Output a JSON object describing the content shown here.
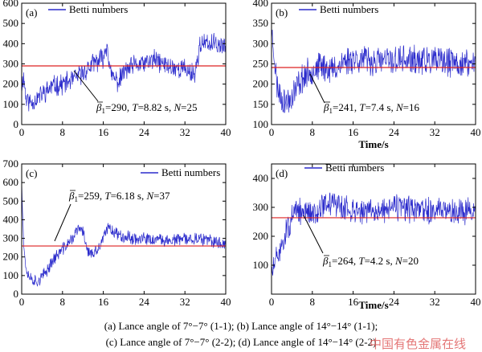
{
  "chart_data": [
    {
      "type": "line",
      "panel_label": "(a)",
      "legend": "Betti numbers",
      "legend_position": "top-left",
      "xlabel": "",
      "ylabel": "",
      "xlim": [
        0,
        40
      ],
      "ylim": [
        0,
        600
      ],
      "xticks": [
        0,
        8,
        16,
        24,
        32,
        40
      ],
      "yticks": [
        0,
        100,
        200,
        300,
        400,
        500,
        600
      ],
      "mean_line": 290,
      "annotation": {
        "beta": "290",
        "T": "8.82 s",
        "N": "25",
        "parts": [
          "1",
          "=290, ",
          "T",
          "=8.82 s, ",
          "N",
          "=25"
        ]
      },
      "profile": [
        [
          0,
          190
        ],
        [
          0.4,
          240
        ],
        [
          0.9,
          120
        ],
        [
          2,
          110
        ],
        [
          4,
          150
        ],
        [
          6,
          190
        ],
        [
          8,
          200
        ],
        [
          10,
          220
        ],
        [
          12,
          255
        ],
        [
          14,
          300
        ],
        [
          16,
          330
        ],
        [
          16.8,
          405
        ],
        [
          17.3,
          255
        ],
        [
          18,
          230
        ],
        [
          19,
          210
        ],
        [
          20,
          260
        ],
        [
          22,
          290
        ],
        [
          24,
          300
        ],
        [
          26,
          320
        ],
        [
          28,
          295
        ],
        [
          30,
          280
        ],
        [
          32,
          275
        ],
        [
          33,
          260
        ],
        [
          34,
          255
        ],
        [
          35,
          400
        ],
        [
          36,
          395
        ],
        [
          38,
          400
        ],
        [
          40,
          385
        ]
      ],
      "noise": 45,
      "seed": 11
    },
    {
      "type": "line",
      "panel_label": "(b)",
      "legend": "Betti numbers",
      "legend_position": "top-right",
      "xlabel": "Time/s",
      "ylabel": "",
      "xlim": [
        0,
        40
      ],
      "ylim": [
        100,
        400
      ],
      "xticks": [
        0,
        8,
        16,
        24,
        32,
        40
      ],
      "yticks": [
        100,
        150,
        200,
        250,
        300,
        350,
        400
      ],
      "mean_line": 241,
      "annotation": {
        "beta": "241",
        "T": "7.4 s",
        "N": "16",
        "parts": [
          "1",
          "=241, ",
          "T",
          "=7.4 s, ",
          "N",
          "=16"
        ]
      },
      "profile": [
        [
          0,
          330
        ],
        [
          0.5,
          280
        ],
        [
          1,
          200
        ],
        [
          2,
          165
        ],
        [
          3,
          155
        ],
        [
          4,
          170
        ],
        [
          5,
          195
        ],
        [
          6,
          215
        ],
        [
          8,
          235
        ],
        [
          10,
          245
        ],
        [
          12,
          235
        ],
        [
          14,
          255
        ],
        [
          16,
          265
        ],
        [
          20,
          255
        ],
        [
          24,
          260
        ],
        [
          28,
          258
        ],
        [
          32,
          255
        ],
        [
          36,
          252
        ],
        [
          40,
          250
        ]
      ],
      "noise": 32,
      "seed": 23
    },
    {
      "type": "line",
      "panel_label": "(c)",
      "legend": "Betti numbers",
      "legend_position": "top-right",
      "xlabel": "",
      "ylabel": "",
      "xlim": [
        0,
        40
      ],
      "ylim": [
        0,
        700
      ],
      "xticks": [
        0,
        8,
        16,
        24,
        32,
        40
      ],
      "yticks": [
        0,
        100,
        200,
        300,
        400,
        500,
        600,
        700
      ],
      "mean_line": 259,
      "annotation": {
        "beta": "259",
        "T": "6.18 s",
        "N": "37",
        "parts": [
          "1",
          "=259, ",
          "T",
          "=6.18 s, ",
          "N",
          "=37"
        ]
      },
      "profile": [
        [
          0,
          620
        ],
        [
          0.4,
          250
        ],
        [
          1,
          120
        ],
        [
          2,
          80
        ],
        [
          3,
          70
        ],
        [
          4,
          90
        ],
        [
          5,
          130
        ],
        [
          6,
          180
        ],
        [
          8,
          240
        ],
        [
          10,
          300
        ],
        [
          11,
          350
        ],
        [
          12,
          340
        ],
        [
          13,
          230
        ],
        [
          14,
          210
        ],
        [
          15,
          240
        ],
        [
          16,
          300
        ],
        [
          17,
          360
        ],
        [
          19,
          320
        ],
        [
          22,
          300
        ],
        [
          26,
          290
        ],
        [
          30,
          290
        ],
        [
          34,
          300
        ],
        [
          38,
          280
        ],
        [
          40,
          270
        ]
      ],
      "noise": 30,
      "seed": 37
    },
    {
      "type": "line",
      "panel_label": "(d)",
      "legend": "Betti numbers",
      "legend_position": "top-left",
      "xlabel": "Time/s",
      "ylabel": "",
      "xlim": [
        0,
        40
      ],
      "ylim": [
        0,
        450
      ],
      "xticks": [
        0,
        8,
        16,
        24,
        32,
        40
      ],
      "yticks": [
        100,
        200,
        300,
        400
      ],
      "mean_line": 264,
      "annotation": {
        "beta": "264",
        "T": "4.2 s",
        "N": "20",
        "parts": [
          "1",
          "=264, ",
          "T",
          "=4.2 s, ",
          "N",
          "=20"
        ]
      },
      "profile": [
        [
          0,
          70
        ],
        [
          1,
          120
        ],
        [
          2,
          170
        ],
        [
          3,
          220
        ],
        [
          4,
          260
        ],
        [
          5,
          285
        ],
        [
          8,
          280
        ],
        [
          10,
          305
        ],
        [
          12,
          320
        ],
        [
          14,
          295
        ],
        [
          16,
          290
        ],
        [
          20,
          285
        ],
        [
          24,
          300
        ],
        [
          28,
          290
        ],
        [
          32,
          285
        ],
        [
          36,
          290
        ],
        [
          40,
          285
        ]
      ],
      "noise": 40,
      "seed": 51
    }
  ],
  "caption": {
    "line1": "(a) Lance angle of 7°−7° (1-1); (b) Lance angle of 14°−14° (1-1);",
    "line2": "(c) Lance angle of 7°−7° (2-2); (d) Lance angle of 14°−14° (2-2)"
  },
  "watermark": "中国有色金属在线",
  "colors": {
    "series": "#2b2bcc",
    "mean": "#dd2222",
    "axis": "#000000"
  }
}
